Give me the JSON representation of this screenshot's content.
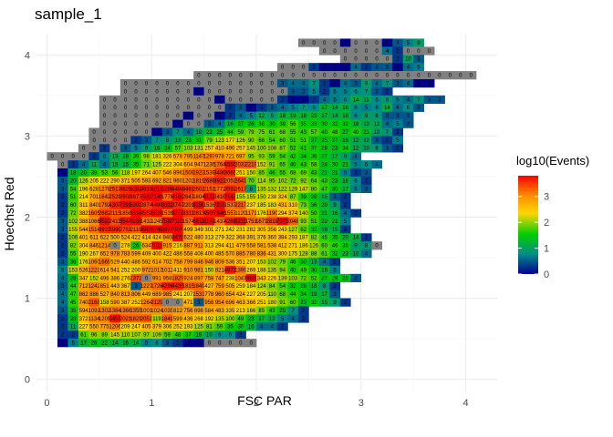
{
  "chart_data": {
    "type": "heatmap",
    "title": "sample_1",
    "xlabel": "FSC PAR",
    "ylabel": "Hoechst Red",
    "x_ticks": [
      "0",
      "1",
      "2",
      "3",
      "4"
    ],
    "y_ticks": [
      "0",
      "1",
      "2",
      "3",
      "4"
    ],
    "xlim": [
      -0.1,
      4.3
    ],
    "ylim": [
      -0.15,
      4.25
    ],
    "bin_width": 0.1,
    "legend": {
      "title": "log10(Events)",
      "ticks": [
        "0",
        "1",
        "2",
        "3"
      ],
      "range": [
        0,
        3.8
      ],
      "position": "right",
      "colors": [
        "#00008b",
        "#008b8b",
        "#00cd00",
        "#ffd700",
        "#ff8c00",
        "#ff0000"
      ]
    },
    "shape": "dense 2D histogram: rows of bins at y = 0.0 to 4.1 (step 0.1), columns at x = 0.0 to 4.1 (step 0.1); each bin shows its event count; events concentrated at FSC PAR 0.1-1.8, Hoechst Red 0.2-2.6 (peak ~3.8 log10 events near x 1.2, y 1.9)",
    "rows": [
      {
        "y": 4.1,
        "x0": 2.4,
        "counts": [
          0,
          0,
          0,
          0,
          1,
          0,
          0,
          0,
          1,
          3,
          5,
          9
        ]
      },
      {
        "y": 4.0,
        "x0": 2.6,
        "counts": [
          0,
          0,
          0,
          0,
          0,
          0,
          4,
          2,
          0,
          0,
          0
        ]
      },
      {
        "y": 3.9,
        "x0": 2.8,
        "counts": [
          0,
          0,
          0,
          0,
          0,
          2,
          10,
          3
        ]
      },
      {
        "y": 3.8,
        "x0": 2.2,
        "counts": [
          0,
          0,
          0,
          2,
          1,
          1,
          1,
          4,
          2,
          3,
          3,
          1,
          4,
          5
        ]
      },
      {
        "y": 3.7,
        "x0": 1.4,
        "counts": [
          0,
          0,
          0,
          0,
          0,
          0,
          0,
          0,
          0,
          0,
          0,
          0,
          0,
          0,
          0,
          0,
          0,
          0,
          0,
          0,
          0,
          0,
          0,
          0,
          0,
          0,
          0
        ]
      },
      {
        "y": 3.6,
        "x0": 0.7,
        "counts": [
          0,
          0,
          0,
          0,
          0,
          0,
          0,
          0,
          0,
          0,
          0,
          0,
          0,
          0,
          0,
          3,
          4,
          4,
          7,
          2,
          1,
          4,
          3,
          9,
          4,
          7,
          3,
          4,
          1,
          1
        ]
      },
      {
        "y": 3.5,
        "x0": 0.7,
        "counts": [
          0,
          0,
          0,
          0,
          0,
          0,
          0,
          1,
          0,
          0,
          0,
          0,
          0,
          0,
          0,
          0,
          3,
          3,
          5,
          2,
          5,
          5,
          6,
          7,
          3,
          2
        ]
      },
      {
        "y": 3.4,
        "x0": 0.5,
        "counts": [
          0,
          0,
          0,
          0,
          0,
          0,
          0,
          0,
          0,
          0,
          0,
          1,
          0,
          0,
          0,
          0,
          0,
          2,
          1,
          1,
          2,
          4,
          5,
          6,
          14,
          11,
          6,
          8,
          5,
          4,
          7,
          3,
          3
        ]
      },
      {
        "y": 3.3,
        "x0": 0.5,
        "counts": [
          0,
          0,
          0,
          0,
          0,
          0,
          0,
          0,
          0,
          0,
          0,
          0,
          2,
          3,
          1,
          2,
          3,
          4,
          5,
          7,
          6,
          17,
          14,
          16,
          6,
          5,
          6,
          14,
          4,
          6,
          3
        ]
      },
      {
        "y": 3.2,
        "x0": 0.5,
        "counts": [
          0,
          0,
          0,
          0,
          0,
          0,
          0,
          0,
          1,
          0,
          0,
          1,
          2,
          4,
          5,
          12,
          9,
          18,
          19,
          18,
          23,
          17,
          14,
          16,
          6,
          9,
          8,
          3,
          3,
          3
        ]
      },
      {
        "y": 3.1,
        "x0": 0.5,
        "counts": [
          0,
          0,
          0,
          0,
          0,
          0,
          0,
          1,
          0,
          0,
          3,
          4,
          16,
          27,
          26,
          38,
          30,
          39,
          56,
          35,
          33,
          30,
          32,
          32,
          18,
          13,
          12,
          4,
          5,
          3
        ]
      },
      {
        "y": 3.0,
        "x0": 0.4,
        "counts": [
          0,
          0,
          0,
          0,
          0,
          0,
          1,
          3,
          7,
          4,
          10,
          23,
          25,
          44,
          59,
          79,
          75,
          61,
          68,
          55,
          43,
          57,
          40,
          48,
          27,
          40,
          21,
          10,
          7,
          2
        ]
      },
      {
        "y": 2.9,
        "x0": 0.4,
        "counts": [
          0,
          0,
          0,
          0,
          2,
          3,
          7,
          8,
          13,
          23,
          31,
          79,
          123,
          177,
          126,
          90,
          66,
          54,
          60,
          51,
          51,
          27,
          25,
          27,
          19,
          12,
          12,
          3,
          2,
          5
        ]
      },
      {
        "y": 2.8,
        "x0": 0.3,
        "counts": [
          0,
          0,
          2,
          0,
          3,
          5,
          9,
          16,
          24,
          57,
          103,
          131,
          257,
          410,
          490,
          257,
          145,
          100,
          108,
          87,
          52,
          41,
          37,
          28,
          23,
          34,
          12,
          10,
          8,
          3,
          2
        ]
      },
      {
        "y": 2.7,
        "x0": 0.0,
        "counts": [
          0,
          0,
          0,
          0,
          2,
          5,
          13,
          18,
          39,
          98,
          181,
          326,
          578,
          795,
          1147,
          1297,
          978,
          721,
          697,
          95,
          93,
          59,
          54,
          42,
          34,
          36,
          27,
          17,
          9,
          4
        ]
      },
      {
        "y": 2.6,
        "x0": 0.1,
        "counts": [
          0,
          2,
          4,
          11,
          4,
          15,
          15,
          35,
          71,
          125,
          222,
          304,
          604,
          947,
          1236,
          1764,
          4555,
          2032,
          2219,
          152,
          91,
          65,
          40,
          43,
          58,
          24,
          30,
          21,
          5,
          6,
          4
        ]
      },
      {
        "y": 2.5,
        "x0": 0.1,
        "counts": [
          1,
          18,
          20,
          39,
          53,
          56,
          118,
          197,
          264,
          407,
          546,
          896,
          1509,
          1923,
          1539,
          3486,
          3665,
          251,
          150,
          85,
          46,
          55,
          68,
          69,
          43,
          21,
          21,
          5,
          2,
          3
        ]
      },
      {
        "y": 2.4,
        "x0": 0.1,
        "counts": [
          3,
          20,
          126,
          205,
          222,
          290,
          371,
          505,
          593,
          692,
          821,
          960,
          1202,
          1819,
          2689,
          3922,
          2053,
          2641,
          70,
          114,
          95,
          102,
          72,
          92,
          64,
          43,
          23,
          16,
          6,
          2
        ]
      },
      {
        "y": 2.3,
        "x0": 0.1,
        "counts": [
          3,
          54,
          196,
          628,
          1278,
          2517,
          3828,
          5282,
          4831,
          6313,
          5286,
          4494,
          3491,
          2603,
          2151,
          1772,
          3592,
          2617,
          8,
          135,
          132,
          122,
          129,
          147,
          80,
          47,
          30,
          17,
          5,
          3
        ]
      },
      {
        "y": 2.2,
        "x0": 0.1,
        "counts": [
          2,
          51,
          214,
          701,
          1642,
          2529,
          3958,
          3677,
          7823,
          7149,
          1778,
          6160,
          2647,
          1804,
          6122,
          2416,
          7147,
          155,
          155,
          150,
          238,
          324,
          87,
          39,
          28,
          15,
          3,
          2
        ]
      },
      {
        "y": 2.1,
        "x0": 0.1,
        "counts": [
          2,
          60,
          311,
          840,
          1792,
          4307,
          7291,
          5200,
          2874,
          4490,
          8032,
          3747,
          2201,
          8250,
          1536,
          7215,
          1537,
          2217,
          237,
          185,
          183,
          431,
          310,
          73,
          36,
          20,
          9,
          2
        ]
      },
      {
        "y": 2.0,
        "x0": 0.1,
        "counts": [
          2,
          72,
          382,
          1605,
          2682,
          2115,
          1850,
          6596,
          4552,
          6826,
          1539,
          9771,
          3311,
          2813,
          4505,
          7346,
          1557,
          1120,
          1171,
          176,
          1190,
          294,
          374,
          140,
          50,
          21,
          16,
          4,
          2
        ]
      },
      {
        "y": 1.9,
        "x0": 0.1,
        "counts": [
          3,
          102,
          388,
          1066,
          9592,
          2413,
          5544,
          8236,
          1432,
          1245,
          7580,
          7102,
          1574,
          6611,
          8142,
          1437,
          4286,
          9215,
          1751,
          1671,
          2818,
          7343,
          2048,
          93,
          51,
          22,
          21,
          5
        ]
      },
      {
        "y": 1.8,
        "x0": 0.1,
        "counts": [
          3,
          155,
          544,
          1514,
          3923,
          3990,
          2751,
          2119,
          9967,
          8746,
          9979,
          7930,
          499,
          349,
          301,
          271,
          242,
          231,
          282,
          305,
          356,
          243,
          127,
          62,
          32,
          16,
          15,
          2
        ]
      },
      {
        "y": 1.7,
        "x0": 0.1,
        "counts": [
          2,
          106,
          401,
          611,
          622,
          500,
          524,
          422,
          414,
          424,
          940,
          8470,
          622,
          480,
          313,
          279,
          322,
          368,
          391,
          376,
          360,
          384,
          293,
          187,
          82,
          45,
          35,
          20,
          14,
          2
        ]
      },
      {
        "y": 1.6,
        "x0": 0.1,
        "counts": [
          2,
          82,
          304,
          846,
          1214,
          0,
          278,
          26,
          634,
          7021,
          915,
          216,
          887,
          911,
          313,
          294,
          411,
          479,
          558,
          581,
          538,
          412,
          271,
          186,
          126,
          60,
          46,
          35,
          9,
          8,
          0
        ]
      },
      {
        "y": 1.5,
        "x0": 0.1,
        "counts": [
          2,
          55,
          190,
          267,
          652,
          978,
          783,
          599,
          409,
          400,
          422,
          486,
          558,
          408,
          400,
          485,
          570,
          885,
          780,
          836,
          431,
          300,
          175,
          128,
          88,
          61,
          32,
          23,
          10,
          4
        ]
      },
      {
        "y": 1.4,
        "x0": 0.1,
        "counts": [
          3,
          36,
          176,
          1060,
          1669,
          529,
          440,
          486,
          592,
          614,
          702,
          758,
          799,
          846,
          946,
          809,
          536,
          351,
          207,
          153,
          102,
          79,
          46,
          30,
          13,
          4,
          2
        ]
      },
      {
        "y": 1.3,
        "x0": 0.1,
        "counts": [
          5,
          153,
          526,
          1223,
          614,
          541,
          252,
          200,
          972,
          1017,
          1012,
          411,
          910,
          981,
          150,
          821,
          4973,
          1399,
          269,
          188,
          135,
          94,
          40,
          49,
          30,
          18,
          5
        ]
      },
      {
        "y": 1.2,
        "x0": 0.1,
        "counts": [
          4,
          28,
          347,
          152,
          496,
          386,
          276,
          2372,
          0,
          991,
          958,
          1829,
          924,
          897,
          758,
          747,
          238,
          1047,
          9605,
          343,
          226,
          139,
          103,
          72,
          52,
          27,
          28,
          25,
          3
        ]
      },
      {
        "y": 1.1,
        "x0": 0.1,
        "counts": [
          3,
          44,
          712,
          1242,
          851,
          443,
          367,
          3,
          1227,
          1726,
          4296,
          4435,
          1815,
          1849,
          427,
          759,
          505,
          259,
          184,
          124,
          84,
          54,
          32,
          28,
          18,
          8,
          2
        ]
      },
      {
        "y": 1.0,
        "x0": 0.1,
        "counts": [
          4,
          47,
          862,
          886,
          527,
          840,
          813,
          806,
          449,
          689,
          985,
          241,
          207,
          1531,
          778,
          960,
          654,
          424,
          227,
          205,
          110,
          68,
          44,
          34,
          19,
          17,
          3
        ]
      },
      {
        "y": 0.9,
        "x0": 0.1,
        "counts": [
          4,
          45,
          740,
          2168,
          158,
          590,
          387,
          252,
          1264,
          2129,
          0,
          0,
          471,
          3,
          956,
          954,
          696,
          463,
          366,
          251,
          180,
          91,
          60,
          23,
          32,
          15,
          9,
          2
        ]
      },
      {
        "y": 0.8,
        "x0": 0.1,
        "counts": [
          3,
          35,
          594,
          1092,
          1302,
          1384,
          1366,
          1355,
          1001,
          1024,
          1035,
          812,
          756,
          698,
          584,
          483,
          335,
          213,
          166,
          85,
          43,
          25,
          7,
          2
        ]
      },
      {
        "y": 0.7,
        "x0": 0.1,
        "counts": [
          2,
          23,
          372,
          1134,
          1209,
          5458,
          2021,
          1829,
          2051,
          119,
          1849,
          599,
          436,
          268,
          192,
          135,
          100,
          49,
          23,
          17,
          12,
          5,
          4,
          2
        ]
      },
      {
        "y": 0.6,
        "x0": 0.1,
        "counts": [
          2,
          11,
          227,
          550,
          775,
          1206,
          209,
          247,
          405,
          379,
          306,
          252,
          193,
          125,
          81,
          59,
          35,
          30,
          16,
          4,
          4,
          2
        ]
      },
      {
        "y": 0.5,
        "x0": 0.1,
        "counts": [
          2,
          2,
          61,
          96,
          89,
          145,
          110,
          107,
          97,
          109,
          59,
          48,
          37,
          19,
          10,
          6,
          6,
          2
        ]
      },
      {
        "y": 0.4,
        "x0": 0.1,
        "counts": [
          1,
          5,
          17,
          26,
          22,
          14,
          16,
          14,
          5,
          6,
          3,
          2,
          1,
          1,
          0,
          0,
          0,
          0,
          0
        ]
      }
    ]
  }
}
